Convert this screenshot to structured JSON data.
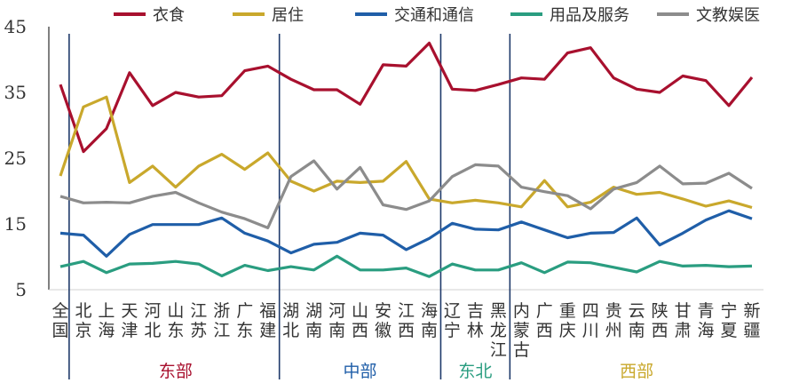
{
  "chart_data": {
    "type": "line",
    "title": "",
    "xlabel": "",
    "ylabel": "",
    "ylim": [
      5,
      45
    ],
    "yticks": [
      5,
      15,
      25,
      35,
      45
    ],
    "grid": false,
    "legend_placement": "top",
    "categories": [
      "全国",
      "北京",
      "上海",
      "天津",
      "河北",
      "山东",
      "江苏",
      "浙江",
      "广东",
      "福建",
      "湖北",
      "湖南",
      "河南",
      "山西",
      "安徽",
      "江西",
      "海南",
      "辽宁",
      "吉林",
      "黑龙江",
      "内蒙古",
      "广西",
      "重庆",
      "四川",
      "贵州",
      "云南",
      "陕西",
      "甘肃",
      "青海",
      "宁夏",
      "新疆"
    ],
    "series": [
      {
        "name": "衣食",
        "color": "#a8102e",
        "values": [
          36.2,
          26,
          29.5,
          38,
          33,
          35,
          34.3,
          34.5,
          38.3,
          39,
          37,
          35.4,
          35.4,
          33.2,
          39.2,
          39,
          42.5,
          35.5,
          35.3,
          36.2,
          37.2,
          37,
          41,
          41.8,
          37.2,
          35.5,
          35,
          37.5,
          36.8,
          33,
          37.3
        ]
      },
      {
        "name": "居住",
        "color": "#c9a82c",
        "values": [
          22.3,
          32.8,
          34.3,
          21.3,
          23.8,
          20.6,
          23.8,
          25.6,
          23.3,
          25.8,
          21.5,
          20,
          21.5,
          21.3,
          21.5,
          24.5,
          18.8,
          18.2,
          18.6,
          18.2,
          17.6,
          21.6,
          17.6,
          18.3,
          20.6,
          19.5,
          19.8,
          18.8,
          17.7,
          18.5,
          17.5
        ]
      },
      {
        "name": "交通和通信",
        "color": "#1f5ea8",
        "values": [
          13.6,
          13.3,
          10.1,
          13.4,
          14.9,
          14.9,
          14.9,
          15.9,
          13.6,
          12.4,
          10.6,
          11.9,
          12.2,
          13.6,
          13.3,
          11.1,
          12.8,
          15.1,
          14.2,
          14.1,
          15.3,
          14.1,
          12.9,
          13.6,
          13.7,
          15.9,
          11.8,
          13.6,
          15.6,
          17,
          15.8
        ]
      },
      {
        "name": "用品及服务",
        "color": "#2a9d80",
        "values": [
          8.5,
          9.3,
          7.6,
          8.9,
          9,
          9.3,
          8.9,
          7.1,
          8.7,
          7.9,
          8.5,
          8,
          10.1,
          8,
          8,
          8.3,
          7,
          8.9,
          8,
          8,
          9.1,
          7.6,
          9.2,
          9.1,
          8.4,
          7.7,
          9.3,
          8.6,
          8.7,
          8.5,
          8.6
        ]
      },
      {
        "name": "文教娱医",
        "color": "#8c8c8c",
        "values": [
          19.2,
          18.2,
          18.3,
          18.2,
          19.2,
          19.8,
          18.2,
          16.8,
          15.8,
          14.4,
          22.2,
          24.6,
          20.3,
          23.6,
          17.9,
          17.2,
          18.5,
          22.2,
          24,
          23.8,
          20.6,
          19.9,
          19.3,
          17.3,
          20.3,
          21.3,
          23.8,
          21.1,
          21.2,
          22.7,
          20.4
        ]
      }
    ],
    "regions": [
      {
        "label": "东部",
        "color": "#a8102e",
        "start": "北京",
        "end": "福建"
      },
      {
        "label": "中部",
        "color": "#1f5ea8",
        "start": "湖北",
        "end": "海南"
      },
      {
        "label": "东北",
        "color": "#2a9d80",
        "start": "辽宁",
        "end": "黑龙江"
      },
      {
        "label": "西部",
        "color": "#c9a82c",
        "start": "内蒙古",
        "end": "新疆"
      }
    ],
    "separator_color": "#1f3a6b"
  }
}
